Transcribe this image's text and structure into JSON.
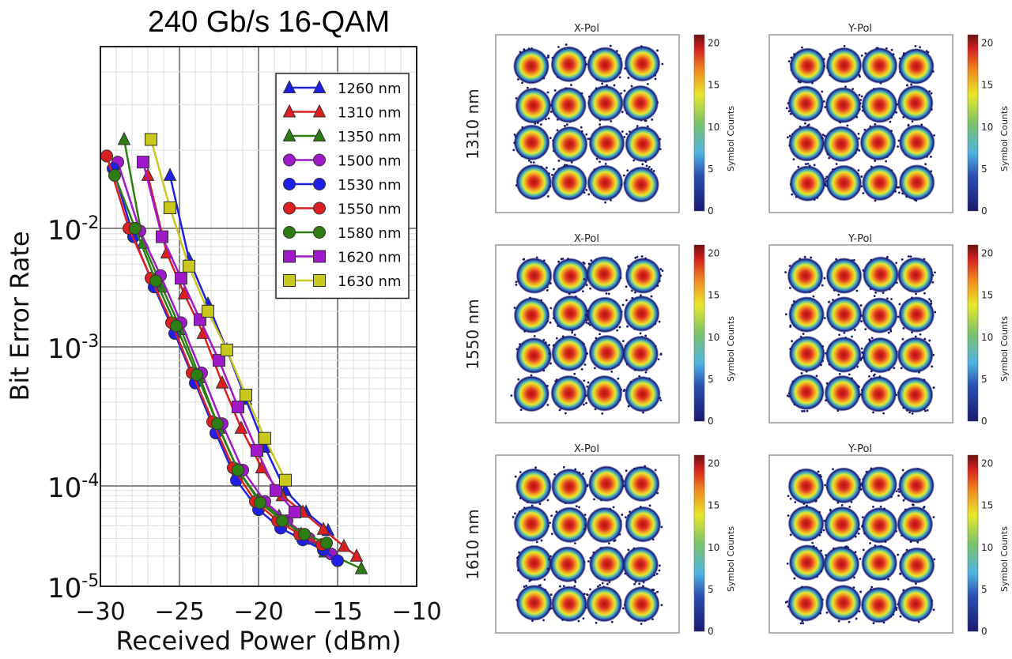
{
  "chart_data": [
    {
      "type": "line",
      "title": "240 Gb/s 16-QAM",
      "xlabel": "Received Power (dBm)",
      "ylabel": "Bit Error Rate",
      "xlim": [
        -30,
        -10
      ],
      "ylim": [
        1e-05,
        0.05
      ],
      "yscale": "log",
      "grid": true,
      "xticks": [
        "−30",
        "−25",
        "−20",
        "−15",
        "−10"
      ],
      "xtick_values": [
        -30,
        -25,
        -20,
        -15,
        -10
      ],
      "yticks": [
        {
          "base": "10",
          "exp": "-2",
          "value": 0.01
        },
        {
          "base": "10",
          "exp": "-3",
          "value": 0.001
        },
        {
          "base": "10",
          "exp": "-4",
          "value": 0.0001
        },
        {
          "base": "10",
          "exp": "-5",
          "value": 1e-05
        }
      ],
      "legend_position": "top-right",
      "series": [
        {
          "name": "1260 nm",
          "color": "#1f1fe6",
          "marker": "triangle",
          "x": [
            -25.6,
            -24.4,
            -23.2,
            -22.0,
            -20.8,
            -19.6,
            -18.3,
            -17.0,
            -15.6
          ],
          "y": [
            0.016,
            0.0055,
            0.0023,
            0.00095,
            0.00042,
            0.00019,
            9e-05,
            5.5e-05,
            3.6e-05
          ]
        },
        {
          "name": "1310 nm",
          "color": "#dd1f1f",
          "marker": "triangle",
          "x": [
            -27.0,
            -25.8,
            -24.7,
            -23.5,
            -22.3,
            -21.1,
            -19.8,
            -18.5,
            -17.2,
            -15.9,
            -14.6,
            -13.8
          ],
          "y": [
            0.016,
            0.0062,
            0.0028,
            0.0013,
            0.00055,
            0.00026,
            0.000135,
            8e-05,
            5.5e-05,
            3.7e-05,
            2.5e-05,
            2e-05
          ]
        },
        {
          "name": "1350 nm",
          "color": "#2e7d12",
          "marker": "triangle",
          "x": [
            -28.5,
            -27.3,
            -26.1,
            -24.9,
            -23.7,
            -22.5,
            -21.3,
            -20.0,
            -18.7,
            -17.3,
            -15.8,
            -13.5
          ],
          "y": [
            0.022,
            0.0075,
            0.0032,
            0.0014,
            0.0006,
            0.00026,
            0.00013,
            7.5e-05,
            5e-05,
            3.3e-05,
            2.2e-05,
            1.5e-05
          ]
        },
        {
          "name": "1500 nm",
          "color": "#a019c8",
          "marker": "circle",
          "x": [
            -28.9,
            -27.5,
            -26.2,
            -24.9,
            -23.6,
            -22.3,
            -21.0,
            -19.6,
            -18.2,
            -16.8,
            -15.4
          ],
          "y": [
            0.018,
            0.0095,
            0.004,
            0.0016,
            0.00065,
            0.00028,
            0.00013,
            7e-05,
            4.5e-05,
            3e-05,
            2.1e-05
          ]
        },
        {
          "name": "1530 nm",
          "color": "#1f1fe6",
          "marker": "circle",
          "x": [
            -29.2,
            -27.9,
            -26.6,
            -25.3,
            -24.0,
            -22.7,
            -21.4,
            -20.0,
            -18.6,
            -17.2,
            -15.9,
            -15.0
          ],
          "y": [
            0.017,
            0.0085,
            0.0032,
            0.0013,
            0.00055,
            0.00024,
            0.00011,
            5.8e-05,
            3.8e-05,
            2.9e-05,
            2.3e-05,
            1.8e-05
          ]
        },
        {
          "name": "1550 nm",
          "color": "#dd1f1f",
          "marker": "circle",
          "x": [
            -29.6,
            -28.2,
            -26.8,
            -25.5,
            -24.2,
            -22.9,
            -21.6,
            -20.2,
            -18.8,
            -17.4,
            -16.0
          ],
          "y": [
            0.019,
            0.01,
            0.0038,
            0.0016,
            0.00065,
            0.00029,
            0.000135,
            7e-05,
            4.5e-05,
            3.3e-05,
            2.6e-05
          ]
        },
        {
          "name": "1580 nm",
          "color": "#2e7d12",
          "marker": "circle",
          "x": [
            -29.1,
            -27.8,
            -26.5,
            -25.2,
            -23.9,
            -22.6,
            -21.3,
            -19.9,
            -18.5,
            -17.1,
            -15.7
          ],
          "y": [
            0.016,
            0.01,
            0.0036,
            0.0015,
            0.00063,
            0.00028,
            0.00013,
            6.8e-05,
            4.5e-05,
            3.3e-05,
            2.7e-05
          ]
        },
        {
          "name": "1620 nm",
          "color": "#a019c8",
          "marker": "square",
          "x": [
            -27.3,
            -26.1,
            -24.9,
            -23.7,
            -22.5,
            -21.3,
            -20.1,
            -18.9,
            -17.7
          ],
          "y": [
            0.018,
            0.0085,
            0.0038,
            0.0017,
            0.0008,
            0.00037,
            0.00018,
            9e-05,
            5.5e-05
          ]
        },
        {
          "name": "1630 nm",
          "color": "#c8c81e",
          "marker": "square",
          "x": [
            -26.8,
            -25.6,
            -24.4,
            -23.2,
            -22.0,
            -20.8,
            -19.6,
            -18.3
          ],
          "y": [
            0.022,
            0.012,
            0.0048,
            0.002,
            0.00095,
            0.00045,
            0.00022,
            0.00011
          ]
        }
      ]
    },
    {
      "type": "heatmap",
      "description": "16-QAM constellation density plots",
      "columns": [
        "X-Pol",
        "Y-Pol"
      ],
      "rows": [
        "1310 nm",
        "1550 nm",
        "1610 nm"
      ],
      "colorbar_label": "Symbol Counts",
      "colorbar_ticks": [
        "0",
        "5",
        "10",
        "15",
        "20"
      ],
      "colorbar_range": [
        0,
        21
      ],
      "grid_points": 16
    }
  ]
}
